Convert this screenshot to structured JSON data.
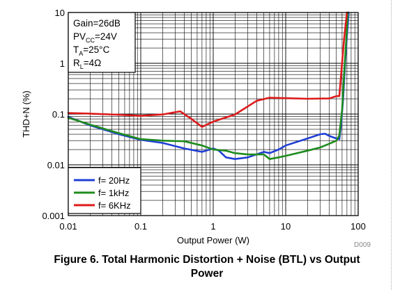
{
  "chart_data": {
    "type": "line",
    "xlabel": "Output Power (W)",
    "ylabel": "THD+N (%)",
    "x_scale": "log",
    "y_scale": "log",
    "xlim": [
      0.01,
      100
    ],
    "ylim": [
      0.001,
      10
    ],
    "x_ticks": [
      "0.01",
      "0.1",
      "1",
      "10",
      "100"
    ],
    "y_ticks": [
      "10",
      "1",
      "0.1",
      "0.01",
      "0.001"
    ],
    "grid": true,
    "legend_placement": "bottom-left",
    "conditions": [
      {
        "main": "Gain=26dB",
        "sub": "",
        "tail": ""
      },
      {
        "main": "PV",
        "sub": "CC",
        "tail": "=24V"
      },
      {
        "main": "T",
        "sub": "A",
        "tail": "=25°C"
      },
      {
        "main": "R",
        "sub": "L",
        "tail": "=4Ω"
      }
    ],
    "series": [
      {
        "name": "f= 20Hz",
        "color": "#1f3fd6",
        "points": [
          [
            0.01,
            0.088
          ],
          [
            0.02,
            0.06
          ],
          [
            0.05,
            0.04
          ],
          [
            0.1,
            0.031
          ],
          [
            0.2,
            0.027
          ],
          [
            0.4,
            0.021
          ],
          [
            0.7,
            0.018
          ],
          [
            1.0,
            0.021
          ],
          [
            1.2,
            0.019
          ],
          [
            1.5,
            0.014
          ],
          [
            2.0,
            0.013
          ],
          [
            3.0,
            0.014
          ],
          [
            5.0,
            0.018
          ],
          [
            6.0,
            0.017
          ],
          [
            8.0,
            0.02
          ],
          [
            10,
            0.024
          ],
          [
            20,
            0.033
          ],
          [
            30,
            0.04
          ],
          [
            35,
            0.041
          ],
          [
            40,
            0.037
          ],
          [
            50,
            0.033
          ],
          [
            55,
            0.032
          ],
          [
            58,
            0.06
          ],
          [
            62,
            0.2
          ],
          [
            66,
            1.0
          ],
          [
            70,
            3.5
          ],
          [
            74,
            10
          ]
        ]
      },
      {
        "name": "f= 1kHz",
        "color": "#1e8c1e",
        "points": [
          [
            0.01,
            0.085
          ],
          [
            0.02,
            0.062
          ],
          [
            0.05,
            0.042
          ],
          [
            0.1,
            0.032
          ],
          [
            0.2,
            0.03
          ],
          [
            0.4,
            0.029
          ],
          [
            0.7,
            0.024
          ],
          [
            1.0,
            0.02
          ],
          [
            1.5,
            0.019
          ],
          [
            2.0,
            0.017
          ],
          [
            3.0,
            0.016
          ],
          [
            5.0,
            0.016
          ],
          [
            6.0,
            0.013
          ],
          [
            8.0,
            0.014
          ],
          [
            10,
            0.015
          ],
          [
            20,
            0.019
          ],
          [
            30,
            0.022
          ],
          [
            40,
            0.026
          ],
          [
            50,
            0.03
          ],
          [
            55,
            0.038
          ],
          [
            60,
            0.12
          ],
          [
            64,
            0.6
          ],
          [
            68,
            2.5
          ],
          [
            72,
            10
          ]
        ]
      },
      {
        "name": "f= 6KHz",
        "color": "#dd1a1a",
        "points": [
          [
            0.01,
            0.105
          ],
          [
            0.02,
            0.102
          ],
          [
            0.05,
            0.097
          ],
          [
            0.1,
            0.092
          ],
          [
            0.2,
            0.098
          ],
          [
            0.35,
            0.113
          ],
          [
            0.5,
            0.08
          ],
          [
            0.7,
            0.056
          ],
          [
            1.0,
            0.071
          ],
          [
            2.0,
            0.098
          ],
          [
            4.0,
            0.183
          ],
          [
            6.0,
            0.21
          ],
          [
            10,
            0.205
          ],
          [
            20,
            0.2
          ],
          [
            40,
            0.203
          ],
          [
            50,
            0.226
          ],
          [
            55,
            0.226
          ],
          [
            60,
            1.0
          ],
          [
            64,
            3.0
          ],
          [
            70,
            10
          ]
        ]
      }
    ]
  },
  "doc_id": "D009",
  "caption_line1": "Figure 6. Total Harmonic Distortion + Noise (BTL) vs Output",
  "caption_line2": "Power"
}
